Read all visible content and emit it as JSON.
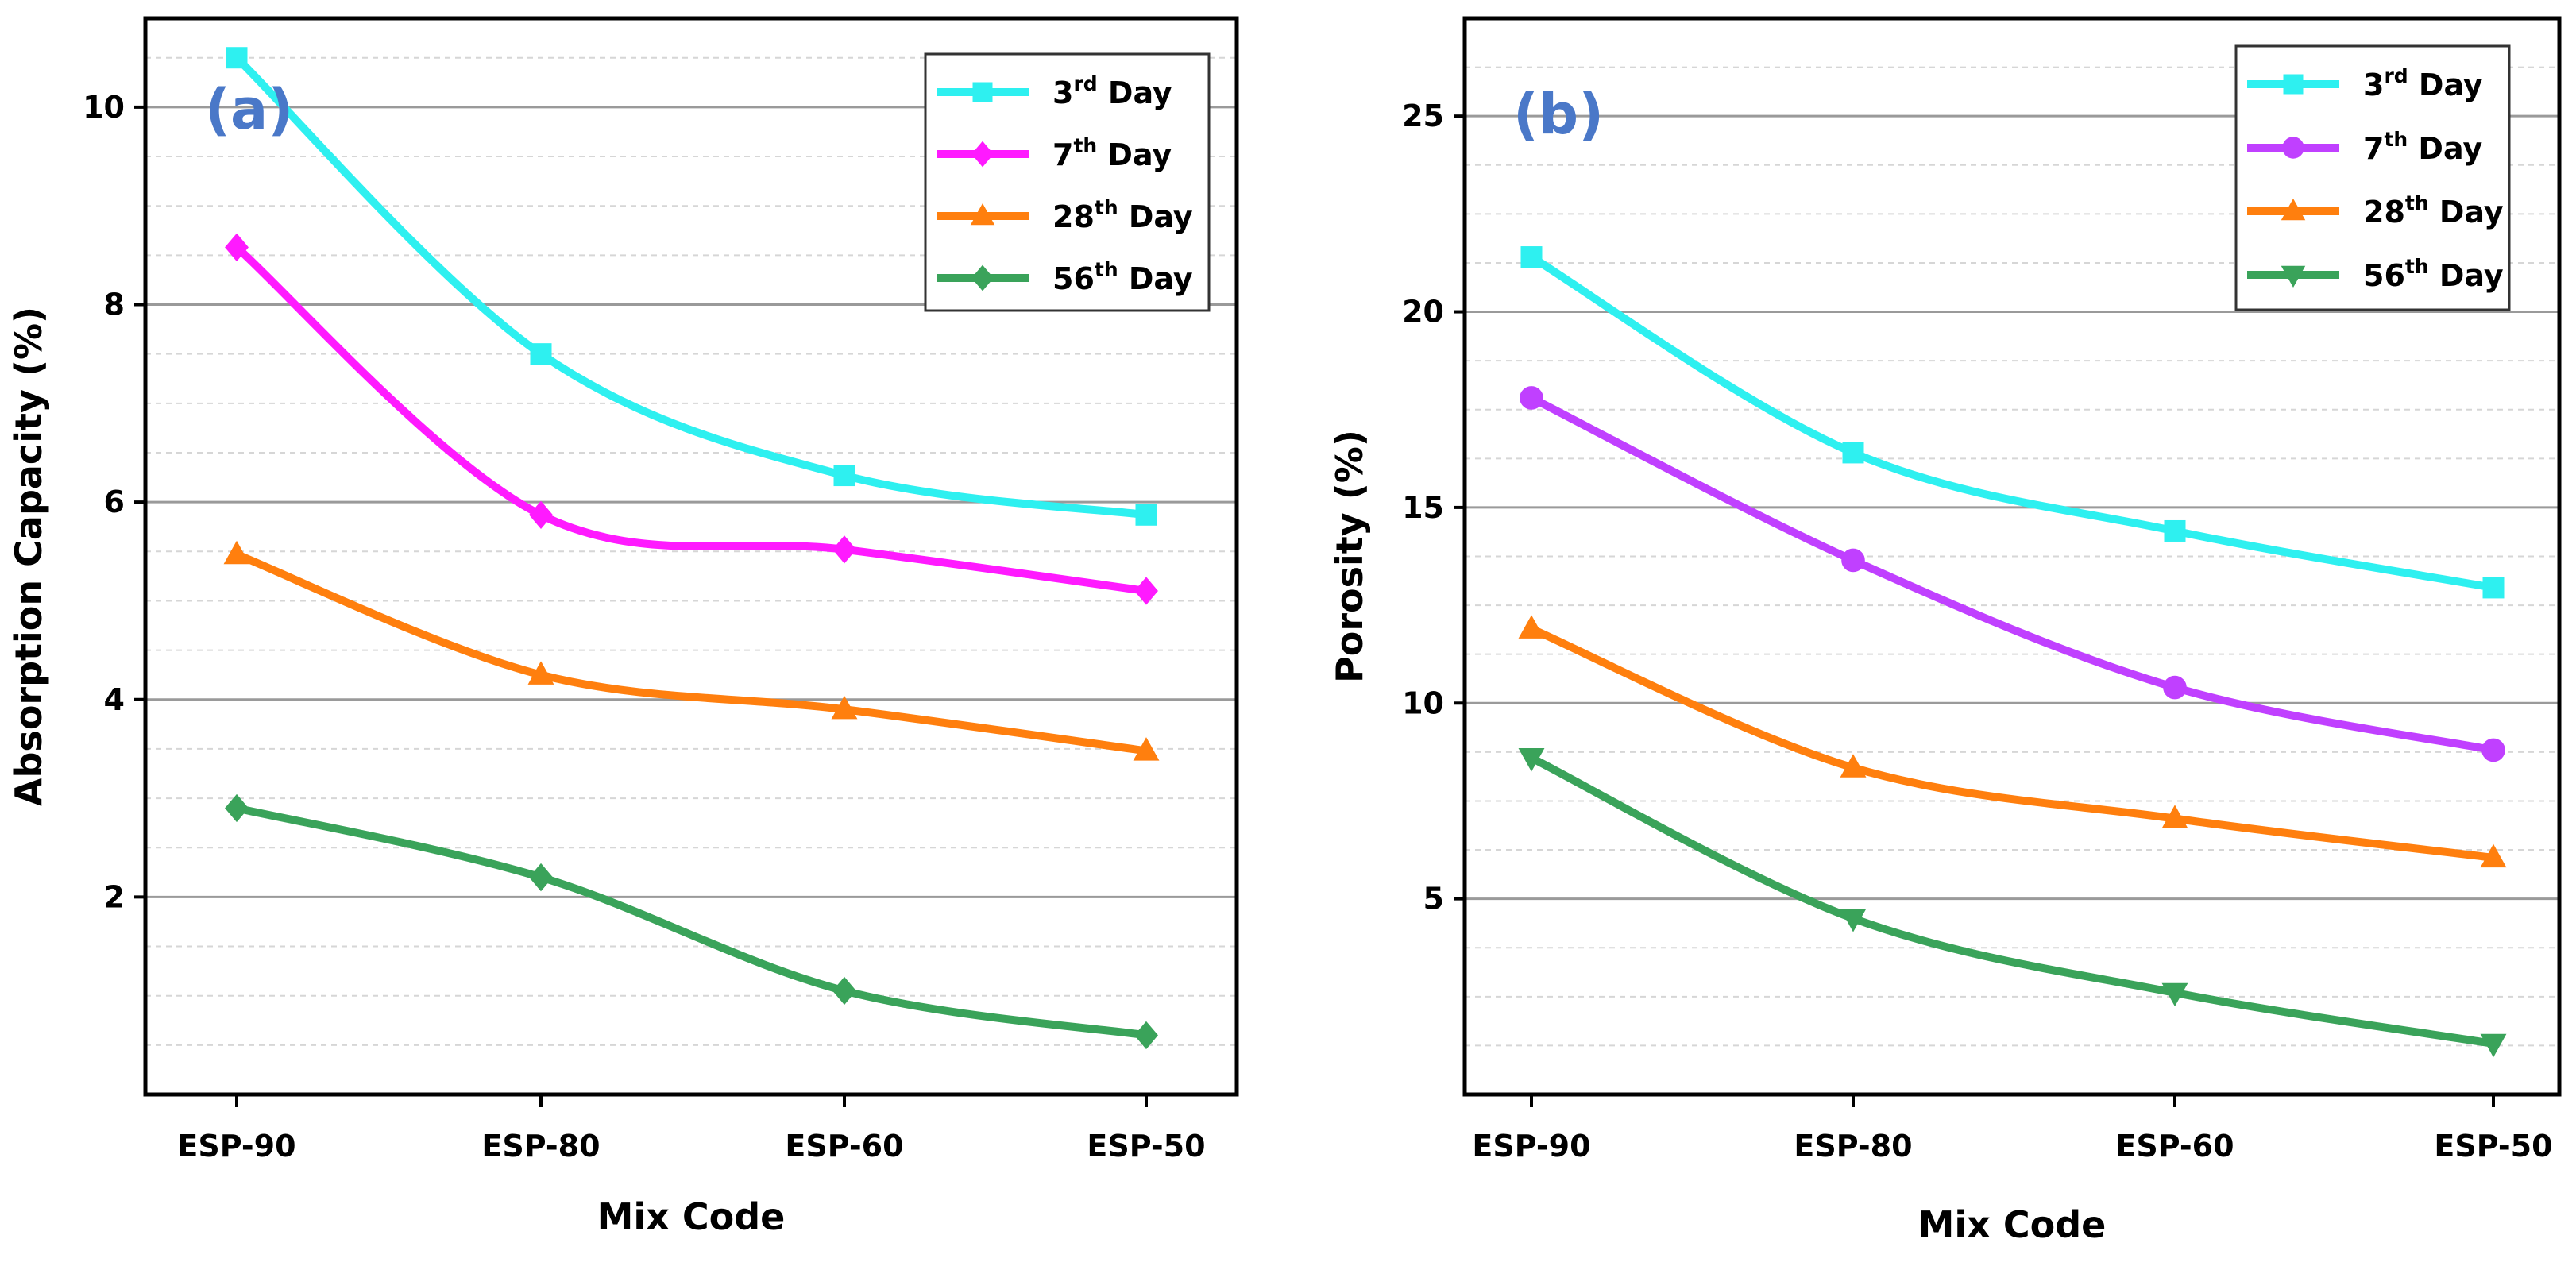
{
  "chart_data": [
    {
      "type": "line",
      "panel_label": "(a)",
      "xlabel": "Mix Code",
      "ylabel": "Absorption Capacity (%)",
      "categories": [
        "ESP-90",
        "ESP-80",
        "ESP-60",
        "ESP-50"
      ],
      "ylim": [
        0,
        10.9
      ],
      "yticks": [
        2,
        4,
        6,
        8,
        10
      ],
      "grid": true,
      "legend_position": "top-right",
      "series": [
        {
          "name": "3rd Day",
          "ordinal": "3",
          "suffix": "rd",
          "label_rest": "Day",
          "color": "#2ef0f0",
          "marker": "square",
          "values": [
            10.5,
            7.5,
            6.27,
            5.87
          ]
        },
        {
          "name": "7th Day",
          "ordinal": "7",
          "suffix": "th",
          "label_rest": "Day",
          "color": "#ff1aff",
          "marker": "diamond",
          "values": [
            8.58,
            5.87,
            5.52,
            5.1
          ]
        },
        {
          "name": "28th Day",
          "ordinal": "28",
          "suffix": "th",
          "label_rest": "Day",
          "color": "#ff7f0e",
          "marker": "triangle-up",
          "values": [
            5.47,
            4.25,
            3.9,
            3.48
          ]
        },
        {
          "name": "56th Day",
          "ordinal": "56",
          "suffix": "th",
          "label_rest": "Day",
          "color": "#3aa35a",
          "marker": "diamond",
          "values": [
            2.9,
            2.2,
            1.05,
            0.6
          ]
        }
      ]
    },
    {
      "type": "line",
      "panel_label": "(b)",
      "xlabel": "Mix Code",
      "ylabel": "Porosity (%)",
      "categories": [
        "ESP-90",
        "ESP-80",
        "ESP-60",
        "ESP-50"
      ],
      "ylim": [
        0,
        27.5
      ],
      "yticks": [
        5,
        10,
        15,
        20,
        25
      ],
      "grid": true,
      "legend_position": "top-right",
      "series": [
        {
          "name": "3rd Day",
          "ordinal": "3",
          "suffix": "rd",
          "label_rest": "Day",
          "color": "#2ef0f0",
          "marker": "square",
          "values": [
            21.4,
            16.4,
            14.4,
            12.95
          ]
        },
        {
          "name": "7th Day",
          "ordinal": "7",
          "suffix": "th",
          "label_rest": "Day",
          "color": "#c040ff",
          "marker": "circle",
          "values": [
            17.8,
            13.65,
            10.4,
            8.8
          ]
        },
        {
          "name": "28th Day",
          "ordinal": "28",
          "suffix": "th",
          "label_rest": "Day",
          "color": "#ff7f0e",
          "marker": "triangle-up",
          "values": [
            11.9,
            8.35,
            7.05,
            6.05
          ]
        },
        {
          "name": "56th Day",
          "ordinal": "56",
          "suffix": "th",
          "label_rest": "Day",
          "color": "#3aa35a",
          "marker": "triangle-down",
          "values": [
            8.6,
            4.5,
            2.6,
            1.3
          ]
        }
      ]
    }
  ]
}
